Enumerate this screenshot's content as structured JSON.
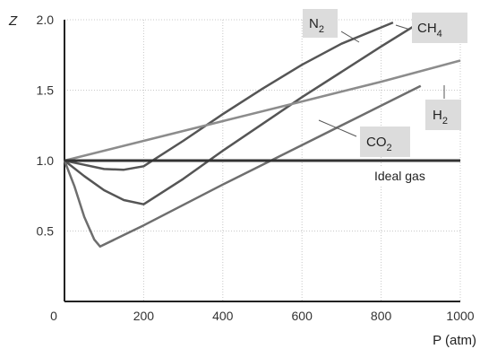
{
  "chart_data": {
    "type": "line",
    "ylabel": "Z",
    "xlabel": "P (atm)",
    "xlim": [
      0,
      1000
    ],
    "ylim": [
      0,
      2.0
    ],
    "x_ticks": [
      "0",
      "200",
      "400",
      "600",
      "800",
      "1000"
    ],
    "y_ticks": [
      "0.5",
      "1.0",
      "1.5",
      "2.0"
    ],
    "grid": true,
    "series": [
      {
        "name": "N₂",
        "color": "#555555",
        "points": [
          [
            0,
            1.0
          ],
          [
            50,
            0.97
          ],
          [
            100,
            0.94
          ],
          [
            150,
            0.935
          ],
          [
            200,
            0.96
          ],
          [
            300,
            1.14
          ],
          [
            400,
            1.33
          ],
          [
            500,
            1.51
          ],
          [
            600,
            1.68
          ],
          [
            700,
            1.83
          ],
          [
            830,
            1.98
          ]
        ]
      },
      {
        "name": "CH₄",
        "color": "#555555",
        "points": [
          [
            0,
            1.0
          ],
          [
            50,
            0.89
          ],
          [
            100,
            0.79
          ],
          [
            150,
            0.72
          ],
          [
            200,
            0.69
          ],
          [
            300,
            0.87
          ],
          [
            400,
            1.07
          ],
          [
            500,
            1.26
          ],
          [
            600,
            1.45
          ],
          [
            700,
            1.63
          ],
          [
            800,
            1.81
          ],
          [
            880,
            1.95
          ]
        ]
      },
      {
        "name": "H₂",
        "color": "#8c8c8c",
        "points": [
          [
            0,
            1.0
          ],
          [
            200,
            1.14
          ],
          [
            400,
            1.28
          ],
          [
            600,
            1.42
          ],
          [
            800,
            1.56
          ],
          [
            1000,
            1.71
          ]
        ]
      },
      {
        "name": "CO₂",
        "color": "#6e6e6e",
        "points": [
          [
            0,
            1.0
          ],
          [
            25,
            0.82
          ],
          [
            50,
            0.6
          ],
          [
            75,
            0.44
          ],
          [
            90,
            0.39
          ],
          [
            200,
            0.54
          ],
          [
            400,
            0.83
          ],
          [
            600,
            1.11
          ],
          [
            800,
            1.39
          ],
          [
            900,
            1.53
          ]
        ]
      },
      {
        "name": "Ideal gas",
        "color": "#333333",
        "points": [
          [
            0,
            1.0
          ],
          [
            1000,
            1.0
          ]
        ]
      }
    ],
    "labels": {
      "n2": "N2",
      "ch4": "CH4",
      "h2": "H2",
      "co2": "CO2",
      "ideal": "Ideal gas"
    }
  }
}
